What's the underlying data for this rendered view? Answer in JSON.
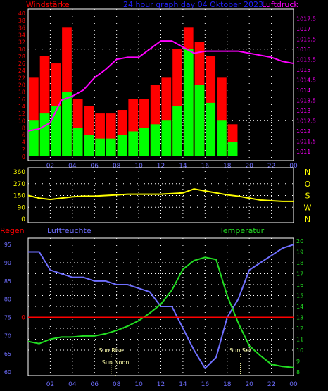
{
  "colors": {
    "red": "#ff0000",
    "green": "#00ff00",
    "magenta": "#ff00ff",
    "blue": "#6f6fff",
    "yellow": "#ffff00",
    "lightgreen": "#22dd22",
    "grid": "#ffffff",
    "frame": "#ffffff",
    "bg": "#000000"
  },
  "header": {
    "title": "24 hour graph day  04 Oktober 2023",
    "left_label": "Windstärke",
    "right_label": "Luftdruck"
  },
  "time_ticks": [
    "02",
    "04",
    "06",
    "08",
    "10",
    "12",
    "14",
    "16",
    "18",
    "20",
    "22",
    "00"
  ],
  "chart_data": [
    {
      "type": "bar",
      "name": "wind",
      "title": "24 hour graph day  04 Oktober 2023",
      "ylabel": "Windstärke",
      "y2label": "Luftdruck",
      "ylim": [
        0,
        40
      ],
      "yticks": [
        "0",
        "2",
        "4",
        "6",
        "8",
        "10",
        "12",
        "14",
        "16",
        "18",
        "20",
        "22",
        "24",
        "26",
        "28",
        "30",
        "32",
        "34",
        "36",
        "38",
        "40"
      ],
      "y2lim": [
        1010.75,
        1017.75
      ],
      "y2ticks": [
        "1011",
        "1011.5",
        "1012",
        "1012.5",
        "1013",
        "1013.5",
        "1014",
        "1014.5",
        "1015",
        "1015.5",
        "1016",
        "1016.5",
        "1017",
        "1017.5"
      ],
      "series": [
        {
          "name": "gust",
          "color": "#ff0000",
          "x": [
            0.5,
            1.5,
            2.5,
            3.5,
            4.5,
            5.5,
            6.5,
            7.5,
            8.5,
            9.5,
            10.5,
            11.5,
            12.5,
            13.5,
            14.5,
            15.5,
            16.5,
            17.5,
            18.5,
            19.5,
            20.5,
            21.5,
            22.5,
            23.5
          ],
          "values": [
            22,
            28,
            26,
            36,
            16,
            14,
            12,
            12,
            13,
            16,
            16,
            20,
            22,
            30,
            36,
            32,
            28,
            22,
            9,
            0,
            0,
            0,
            0,
            0
          ]
        },
        {
          "name": "mean",
          "color": "#00ff00",
          "x": [
            0.5,
            1.5,
            2.5,
            3.5,
            4.5,
            5.5,
            6.5,
            7.5,
            8.5,
            9.5,
            10.5,
            11.5,
            12.5,
            13.5,
            14.5,
            15.5,
            16.5,
            17.5,
            18.5,
            19.5,
            20.5,
            21.5,
            22.5,
            23.5
          ],
          "values": [
            10,
            12,
            14,
            18,
            8,
            6,
            5,
            5,
            6,
            7,
            8,
            9,
            10,
            14,
            30,
            20,
            15,
            10,
            4,
            0,
            0,
            0,
            0,
            0
          ]
        },
        {
          "name": "pressure",
          "color": "#ff00ff",
          "axis": "y2",
          "x": [
            0,
            1,
            2,
            3,
            4,
            5,
            6,
            7,
            8,
            9,
            10,
            11,
            12,
            13,
            14,
            15,
            16,
            17,
            18,
            19,
            20,
            21,
            22,
            23,
            24
          ],
          "values": [
            1012,
            1012.1,
            1012.4,
            1013.5,
            1013.7,
            1014,
            1014.6,
            1015,
            1015.5,
            1015.6,
            1015.6,
            1016,
            1016.4,
            1016.4,
            1016.1,
            1015.8,
            1015.9,
            1015.9,
            1015.9,
            1015.9,
            1015.8,
            1015.7,
            1015.6,
            1015.4,
            1015.3
          ]
        }
      ]
    },
    {
      "type": "line",
      "name": "wind-direction",
      "ylim": [
        0,
        360
      ],
      "yticks": [
        "0",
        "90",
        "180",
        "270",
        "360"
      ],
      "right_labels": [
        "N",
        "W",
        "S",
        "O",
        "N"
      ],
      "series": [
        {
          "name": "direction",
          "color": "#ffff00",
          "x": [
            0,
            1,
            2,
            3,
            4,
            5,
            6,
            7,
            8,
            9,
            10,
            11,
            12,
            13,
            14,
            15,
            16,
            17,
            18,
            19,
            20,
            21,
            22,
            23,
            24
          ],
          "values": [
            180,
            160,
            150,
            160,
            170,
            175,
            175,
            180,
            185,
            190,
            190,
            190,
            190,
            195,
            200,
            230,
            215,
            200,
            185,
            175,
            160,
            145,
            140,
            135,
            135
          ]
        }
      ]
    },
    {
      "type": "line",
      "name": "rain-humidity-temperature",
      "labels": {
        "rain": "Regen",
        "humidity": "Luftfeuchte",
        "temperature": "Temperatur"
      },
      "ylim_humidity": [
        60,
        96
      ],
      "yticks_humidity": [
        "60",
        "65",
        "70",
        "75",
        "80",
        "85",
        "90",
        "95"
      ],
      "ylim_temp": [
        8,
        20
      ],
      "yticks_temp": [
        "8",
        "9",
        "10",
        "11",
        "12",
        "13",
        "14",
        "15",
        "16",
        "17",
        "18",
        "19",
        "20"
      ],
      "rain_tick": "0",
      "annotations": {
        "sunrise": "Sun Rise",
        "sunset": "Sun Set",
        "noon": "Sun Noon"
      },
      "sunrise_hour": 7.5,
      "sunset_hour": 19.2,
      "noon_hour": 7.9,
      "series": [
        {
          "name": "humidity",
          "color": "#6f6fff",
          "x": [
            0,
            1,
            2,
            3,
            4,
            5,
            6,
            7,
            8,
            9,
            10,
            11,
            12,
            13,
            14,
            15,
            16,
            17,
            18,
            19,
            20,
            21,
            22,
            23,
            24
          ],
          "values": [
            93,
            93,
            88,
            87,
            86,
            86,
            85,
            85,
            84,
            84,
            83,
            82,
            78,
            78,
            72,
            66,
            61,
            64,
            75,
            80,
            88,
            90,
            92,
            94,
            95
          ]
        },
        {
          "name": "temperature",
          "color": "#22dd22",
          "x": [
            0,
            1,
            2,
            3,
            4,
            5,
            6,
            7,
            8,
            9,
            10,
            11,
            12,
            13,
            14,
            15,
            16,
            17,
            18,
            19,
            20,
            21,
            22,
            23,
            24
          ],
          "values": [
            10.8,
            10.6,
            11,
            11.2,
            11.2,
            11.3,
            11.3,
            11.5,
            11.8,
            12.2,
            12.7,
            13.4,
            14.2,
            15.5,
            17.4,
            18.2,
            18.5,
            18.3,
            15,
            12.5,
            10.4,
            9.5,
            8.7,
            8.5,
            8.4
          ]
        },
        {
          "name": "rain",
          "color": "#ff0000",
          "x": [
            0,
            24
          ],
          "values": [
            0,
            0
          ]
        }
      ]
    }
  ]
}
